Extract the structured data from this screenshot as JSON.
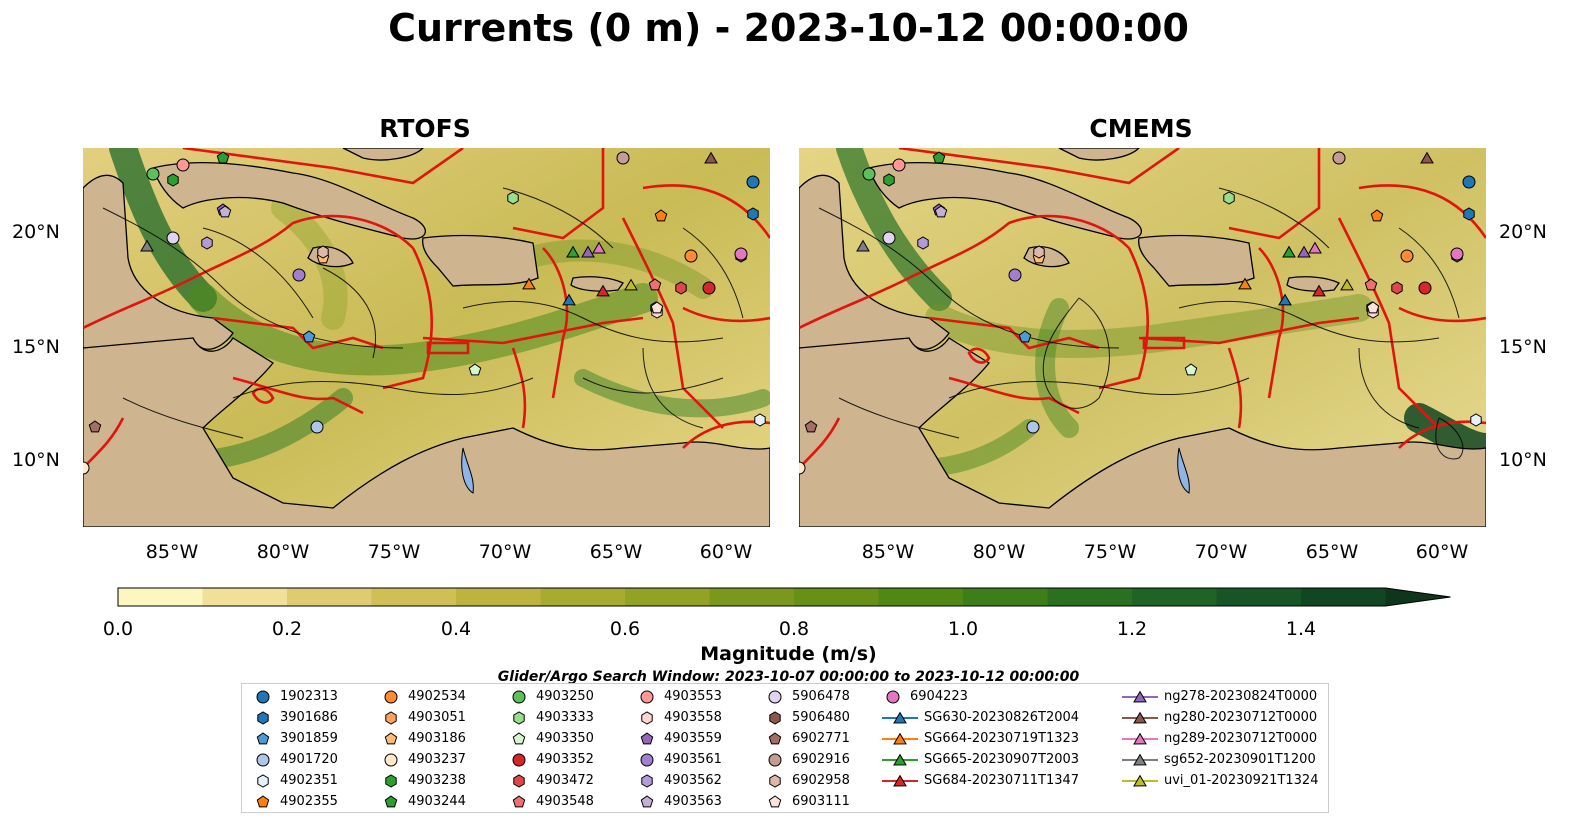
{
  "suptitle": "Currents (0 m) - 2023-10-12 00:00:00",
  "panels": [
    {
      "id": "rtofs",
      "title": "RTOFS"
    },
    {
      "id": "cmems",
      "title": "CMEMS"
    }
  ],
  "axes": {
    "lat_ticks": [
      "20°N",
      "15°N",
      "10°N"
    ],
    "lon_ticks": [
      "85°W",
      "80°W",
      "75°W",
      "70°W",
      "65°W",
      "60°W"
    ]
  },
  "colorbar": {
    "label": "Magnitude (m/s)",
    "ticks": [
      "0.0",
      "0.2",
      "0.4",
      "0.6",
      "0.8",
      "1.0",
      "1.2",
      "1.4"
    ],
    "min": 0.0,
    "max": 1.5,
    "step": 0.1,
    "extend": "max",
    "colors": [
      "#fcf6c0",
      "#efe09a",
      "#decb72",
      "#d0bf55",
      "#bcb43f",
      "#a7ac30",
      "#92a224",
      "#7c981c",
      "#679016",
      "#518815",
      "#3d7e1a",
      "#2b7020",
      "#1f6325",
      "#175527",
      "#124623",
      "#0f351c"
    ]
  },
  "note": "Glider/Argo Search Window: 2023-10-07 00:00:00 to 2023-10-12 00:00:00",
  "colors": {
    "land": "#cfb490",
    "eez": "#e0150e",
    "lake": "#8fb5e6",
    "river": "#9eb9d8"
  },
  "legend": {
    "columns": [
      [
        {
          "label": "1902313",
          "marker": "circle",
          "color": "#1f77b4"
        },
        {
          "label": "3901686",
          "marker": "hexagon",
          "color": "#1f77b4"
        },
        {
          "label": "3901859",
          "marker": "pentagon",
          "color": "#4d9bd6"
        },
        {
          "label": "4901720",
          "marker": "circle",
          "color": "#aec7e8"
        },
        {
          "label": "4902351",
          "marker": "hexagon",
          "color": "#e6f1fb"
        },
        {
          "label": "4902355",
          "marker": "pentagon",
          "color": "#ff7f0e"
        }
      ],
      [
        {
          "label": "4902534",
          "marker": "circle",
          "color": "#ff8c33"
        },
        {
          "label": "4903051",
          "marker": "hexagon",
          "color": "#ffa15c"
        },
        {
          "label": "4903186",
          "marker": "pentagon",
          "color": "#ffbb78"
        },
        {
          "label": "4903237",
          "marker": "circle",
          "color": "#ffe8cc"
        },
        {
          "label": "4903238",
          "marker": "hexagon",
          "color": "#2ca02c"
        },
        {
          "label": "4903244",
          "marker": "pentagon",
          "color": "#2ca02c"
        }
      ],
      [
        {
          "label": "4903250",
          "marker": "circle",
          "color": "#5dc05d"
        },
        {
          "label": "4903333",
          "marker": "hexagon",
          "color": "#98df8a"
        },
        {
          "label": "4903350",
          "marker": "pentagon",
          "color": "#d8f5d0"
        },
        {
          "label": "4903352",
          "marker": "circle",
          "color": "#d62728"
        },
        {
          "label": "4903472",
          "marker": "hexagon",
          "color": "#e04848"
        },
        {
          "label": "4903548",
          "marker": "pentagon",
          "color": "#f07070"
        }
      ],
      [
        {
          "label": "4903553",
          "marker": "circle",
          "color": "#ff9896"
        },
        {
          "label": "4903558",
          "marker": "hexagon",
          "color": "#ffd6d5"
        },
        {
          "label": "4903559",
          "marker": "pentagon",
          "color": "#9467bd"
        },
        {
          "label": "4903561",
          "marker": "circle",
          "color": "#a17fcc"
        },
        {
          "label": "4903562",
          "marker": "hexagon",
          "color": "#b39ad8"
        },
        {
          "label": "4903563",
          "marker": "pentagon",
          "color": "#c5b0d5"
        }
      ],
      [
        {
          "label": "5906478",
          "marker": "circle",
          "color": "#e2d3f0"
        },
        {
          "label": "5906480",
          "marker": "hexagon",
          "color": "#8c564b"
        },
        {
          "label": "6902771",
          "marker": "pentagon",
          "color": "#a16f63"
        },
        {
          "label": "6902916",
          "marker": "circle",
          "color": "#c49c94"
        },
        {
          "label": "6902958",
          "marker": "hexagon",
          "color": "#e0b8a8"
        },
        {
          "label": "6903111",
          "marker": "pentagon",
          "color": "#fbe3dc"
        }
      ],
      [
        {
          "label": "6904223",
          "marker": "circle",
          "color": "#e377c2"
        },
        {
          "label": "SG630-20230826T2004",
          "marker": "triangle",
          "color": "#1f77b4"
        },
        {
          "label": "SG664-20230719T1323",
          "marker": "triangle",
          "color": "#ff7f0e"
        },
        {
          "label": "SG665-20230907T2003",
          "marker": "triangle",
          "color": "#2ca02c"
        },
        {
          "label": "SG684-20230711T1347",
          "marker": "triangle",
          "color": "#d62728"
        }
      ],
      [
        {
          "label": "ng278-20230824T0000",
          "marker": "triangle",
          "color": "#9467bd"
        },
        {
          "label": "ng280-20230712T0000",
          "marker": "triangle",
          "color": "#8c564b"
        },
        {
          "label": "ng289-20230712T0000",
          "marker": "triangle",
          "color": "#e377c2"
        },
        {
          "label": "sg652-20230901T1200",
          "marker": "triangle",
          "color": "#7f7f7f"
        },
        {
          "label": "uvi_01-20230921T1324",
          "marker": "triangle",
          "color": "#bcbd22"
        }
      ]
    ]
  }
}
